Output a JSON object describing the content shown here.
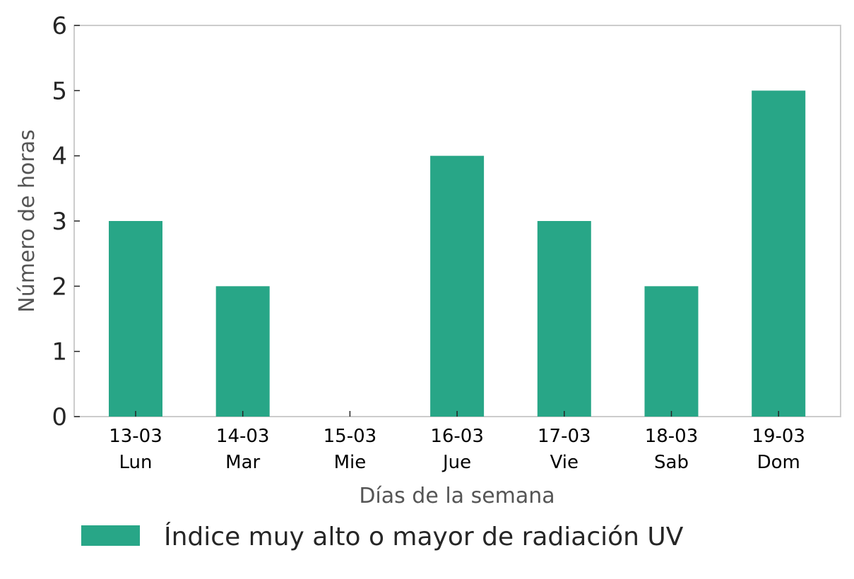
{
  "chart_data": {
    "type": "bar",
    "categories": [
      [
        "13-03",
        "Lun"
      ],
      [
        "14-03",
        "Mar"
      ],
      [
        "15-03",
        "Mie"
      ],
      [
        "16-03",
        "Jue"
      ],
      [
        "17-03",
        "Vie"
      ],
      [
        "18-03",
        "Sab"
      ],
      [
        "19-03",
        "Dom"
      ]
    ],
    "series": [
      {
        "name": "Índice muy alto o mayor de radiación UV",
        "values": [
          3,
          2,
          0,
          4,
          3,
          2,
          5
        ],
        "color": "#28a687"
      }
    ],
    "xlabel": "Días de la semana",
    "ylabel": "Número de horas",
    "ylim": [
      0,
      6
    ],
    "yticks": [
      0,
      1,
      2,
      3,
      4,
      5,
      6
    ],
    "grid": false,
    "legend_position": "bottom-left"
  }
}
